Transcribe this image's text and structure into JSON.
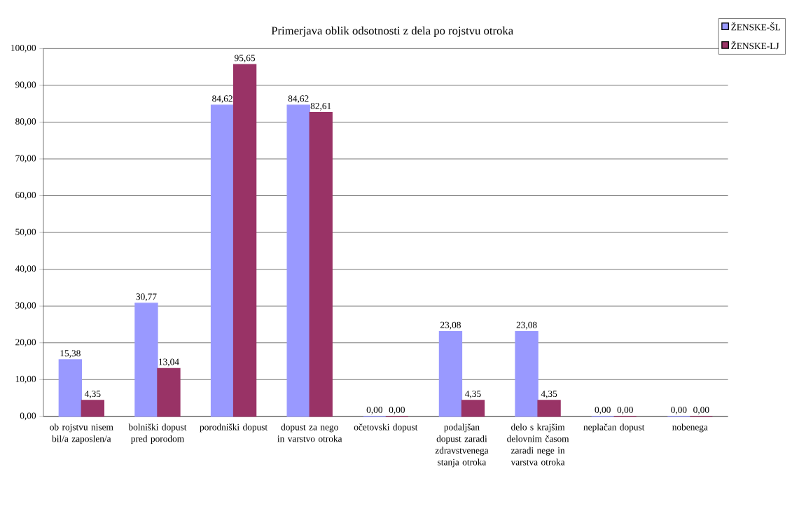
{
  "chart_data": {
    "type": "bar",
    "title": "Primerjava oblik odsotnosti z dela po rojstvu otroka",
    "categories": [
      "ob rojstvu nisem bil/a zaposlen/a",
      "bolniški dopust pred porodom",
      "porodniški dopust",
      "dopust za nego in varstvo otroka",
      "očetovski dopust",
      "podaljšan dopust zaradi zdravstvenega stanja otroka",
      "delo s krajšim delovnim časom zaradi nege in varstva otroka",
      "neplačan dopust",
      "nobenega"
    ],
    "series": [
      {
        "name": "ŽENSKE-ŠL",
        "color": "#9999ff",
        "values": [
          15.38,
          30.77,
          84.62,
          84.62,
          0,
          23.08,
          23.08,
          0,
          0
        ],
        "value_labels": [
          "15,38",
          "30,77",
          "84,62",
          "84,62",
          "0,00",
          "23,08",
          "23,08",
          "0,00",
          "0,00"
        ]
      },
      {
        "name": "ŽENSKE-LJ",
        "color": "#993366",
        "values": [
          4.35,
          13.04,
          95.65,
          82.61,
          0,
          4.35,
          4.35,
          0,
          0
        ],
        "value_labels": [
          "4,35",
          "13,04",
          "95,65",
          "82,61",
          "0,00",
          "4,35",
          "4,35",
          "0,00",
          "0,00"
        ]
      }
    ],
    "ylim": [
      0,
      100
    ],
    "yticks": [
      {
        "value": 0,
        "label": "0,00"
      },
      {
        "value": 10,
        "label": "10,00"
      },
      {
        "value": 20,
        "label": "20,00"
      },
      {
        "value": 30,
        "label": "30,00"
      },
      {
        "value": 40,
        "label": "40,00"
      },
      {
        "value": 50,
        "label": "50,00"
      },
      {
        "value": 60,
        "label": "60,00"
      },
      {
        "value": 70,
        "label": "70,00"
      },
      {
        "value": 80,
        "label": "80,00"
      },
      {
        "value": 90,
        "label": "90,00"
      },
      {
        "value": 100,
        "label": "100,00"
      }
    ],
    "grid": "y",
    "legend": "top right"
  }
}
